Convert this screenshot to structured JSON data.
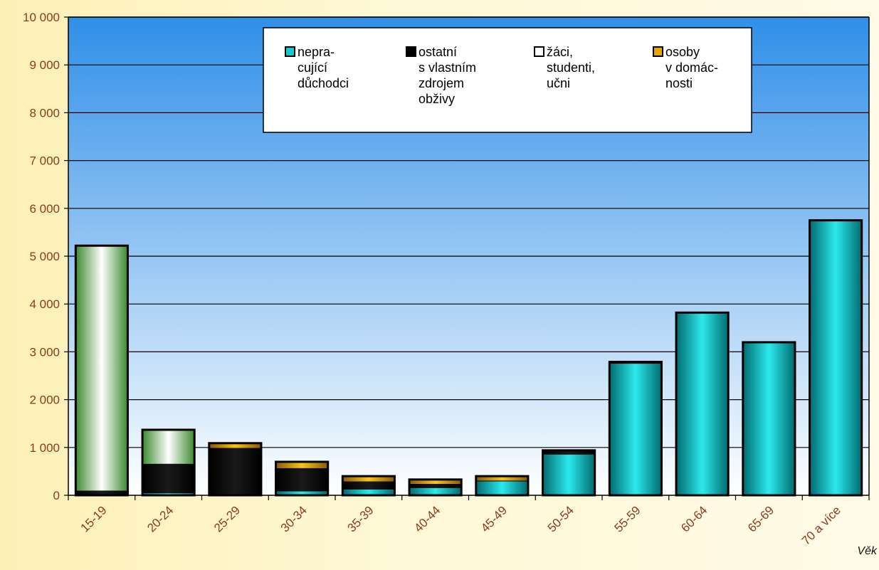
{
  "chart_data": {
    "type": "bar",
    "stacked": true,
    "title": "",
    "xlabel": "Věk",
    "ylabel": "",
    "ylim": [
      0,
      10000
    ],
    "yticks": [
      0,
      1000,
      2000,
      3000,
      4000,
      5000,
      6000,
      7000,
      8000,
      9000,
      10000
    ],
    "ytick_labels": [
      "0",
      "1 000",
      "2 000",
      "3 000",
      "4 000",
      "5 000",
      "6 000",
      "7 000",
      "8 000",
      "9 000",
      "10 000"
    ],
    "grid": true,
    "legend_position": "top-center",
    "categories": [
      "15-19",
      "20-24",
      "25-29",
      "30-34",
      "35-39",
      "40-44",
      "45-49",
      "50-54",
      "55-59",
      "60-64",
      "65-69",
      "70 a více"
    ],
    "series": [
      {
        "name": "nepra-cující důchodci",
        "legend_lines": [
          "nepra-",
          "cující",
          "důchodci"
        ],
        "color": "#19c8cc",
        "values": [
          0,
          40,
          0,
          80,
          120,
          150,
          290,
          850,
          2750,
          3820,
          3200,
          5750
        ]
      },
      {
        "name": "ostatní s vlastním zdrojem obživy",
        "legend_lines": [
          "ostatní",
          "s vlastním",
          "zdrojem",
          "obživy"
        ],
        "color": "#000000",
        "values": [
          100,
          620,
          990,
          490,
          170,
          90,
          20,
          90,
          40,
          0,
          0,
          0
        ]
      },
      {
        "name": "žáci, studenti, učni",
        "legend_lines": [
          "žáci,",
          "studenti,",
          "učni"
        ],
        "color": "#ffffff",
        "values": [
          5120,
          690,
          0,
          0,
          0,
          0,
          0,
          0,
          0,
          0,
          0,
          0
        ]
      },
      {
        "name": "osoby v domác-nosti",
        "legend_lines": [
          "osoby",
          "v domác-",
          "nosti"
        ],
        "color": "#e8a400",
        "values": [
          0,
          20,
          100,
          130,
          110,
          90,
          90,
          0,
          0,
          0,
          0,
          0
        ]
      }
    ],
    "colors": {
      "plot_bg_top": "#2f8fe8",
      "plot_bg_bottom": "#ffffff",
      "axis_text": "#8b3a1e",
      "students_edge": "#3b8a2e"
    }
  }
}
